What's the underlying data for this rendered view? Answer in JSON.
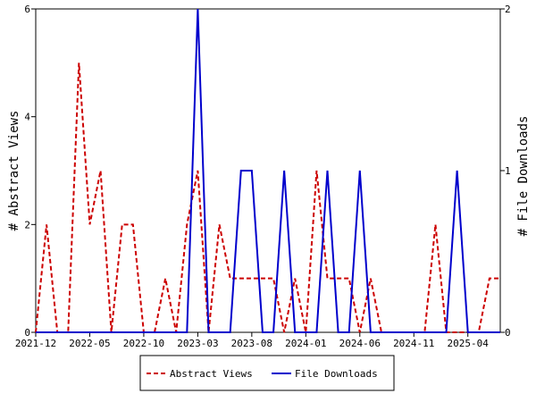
{
  "chart_data": {
    "type": "line",
    "x_tick_labels": [
      "2021-12",
      "2022-05",
      "2022-10",
      "2023-03",
      "2023-08",
      "2024-01",
      "2024-06",
      "2024-11",
      "2025-04"
    ],
    "left_axis": {
      "label": "# Abstract Views",
      "ylim": [
        0,
        6
      ],
      "ticks": [
        "0",
        "2",
        "4",
        "6"
      ]
    },
    "right_axis": {
      "label": "# File Downloads",
      "ylim": [
        0,
        2
      ],
      "ticks": [
        "0",
        "1",
        "2"
      ]
    },
    "x_count": 44,
    "series": [
      {
        "name": "Abstract Views",
        "axis": "left",
        "color": "#cc0000",
        "style": "dashed",
        "values": [
          0,
          2,
          0,
          0,
          5,
          2,
          3,
          0,
          2,
          2,
          0,
          0,
          1,
          0,
          2,
          3,
          0,
          2,
          1,
          1,
          1,
          1,
          1,
          0,
          1,
          0,
          3,
          1,
          1,
          1,
          0,
          1,
          0,
          0,
          0,
          0,
          0,
          2,
          0,
          0,
          0,
          0,
          1,
          1
        ]
      },
      {
        "name": "File Downloads",
        "axis": "right",
        "color": "#0000cc",
        "style": "solid",
        "values": [
          0,
          0,
          0,
          0,
          0,
          0,
          0,
          0,
          0,
          0,
          0,
          0,
          0,
          0,
          0,
          2,
          0,
          0,
          0,
          1,
          1,
          0,
          0,
          1,
          0,
          0,
          0,
          1,
          0,
          0,
          1,
          0,
          0,
          0,
          0,
          0,
          0,
          0,
          0,
          1,
          0,
          0,
          0,
          0
        ]
      }
    ],
    "legend": {
      "position": "bottom",
      "entries": [
        "Abstract Views",
        "File Downloads"
      ]
    },
    "grid": false
  }
}
